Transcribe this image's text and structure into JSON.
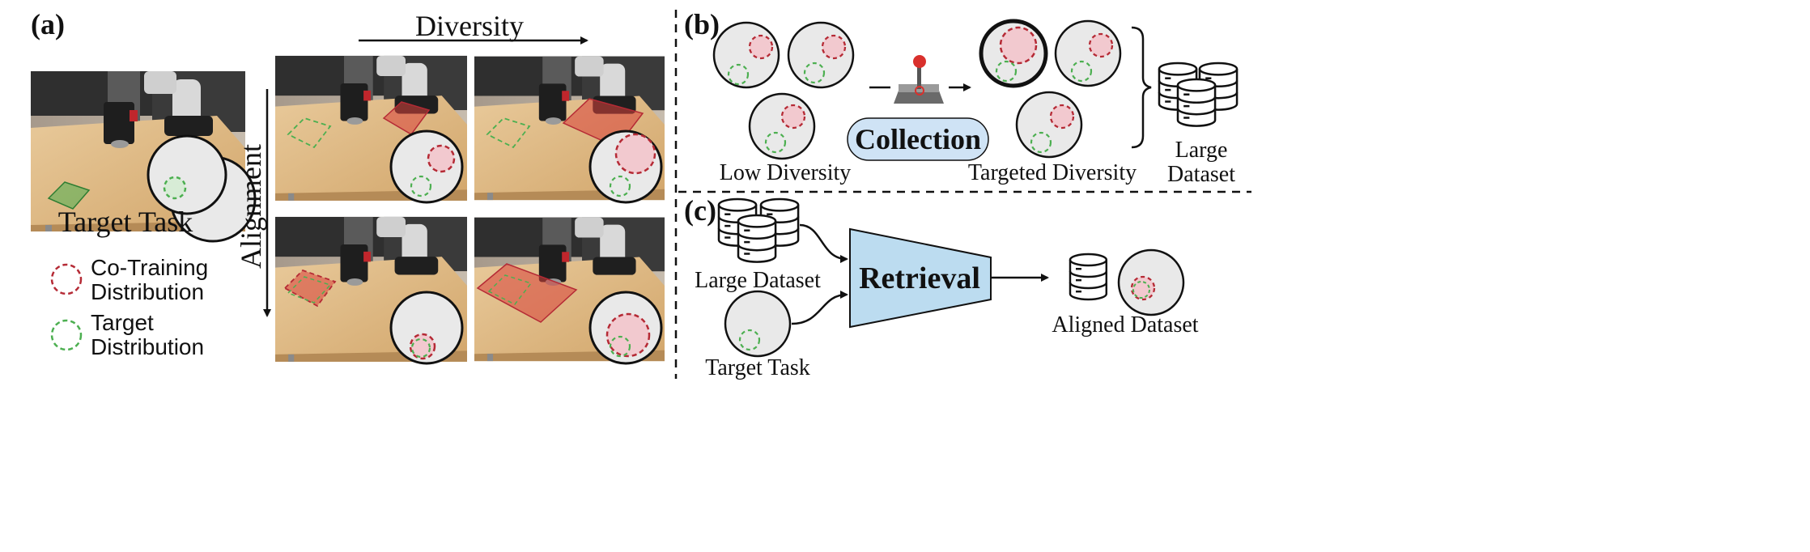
{
  "panel_a": {
    "tag": "(a)",
    "x_axis_label": "Diversity",
    "y_axis_label": "Alignment",
    "target_caption": "Target Task",
    "legend": {
      "co_training_line1": "Co-Training",
      "co_training_line2": "Distribution",
      "target_line1": "Target",
      "target_line2": "Distribution"
    }
  },
  "panel_b": {
    "tag": "(b)",
    "low_diversity": "Low Diversity",
    "collection": "Collection",
    "targeted_diversity": "Targeted Diversity",
    "large_dataset_line1": "Large",
    "large_dataset_line2": "Dataset"
  },
  "panel_c": {
    "tag": "(c)",
    "large_dataset": "Large Dataset",
    "target_task": "Target Task",
    "retrieval": "Retrieval",
    "aligned_dataset": "Aligned Dataset"
  },
  "colors": {
    "co_training": "#b52a35",
    "target": "#4caf50",
    "circle_fill": "#e9e9e9",
    "collection_fill": "#cfe3f5",
    "retrieval_fill": "#bcdcf0"
  }
}
